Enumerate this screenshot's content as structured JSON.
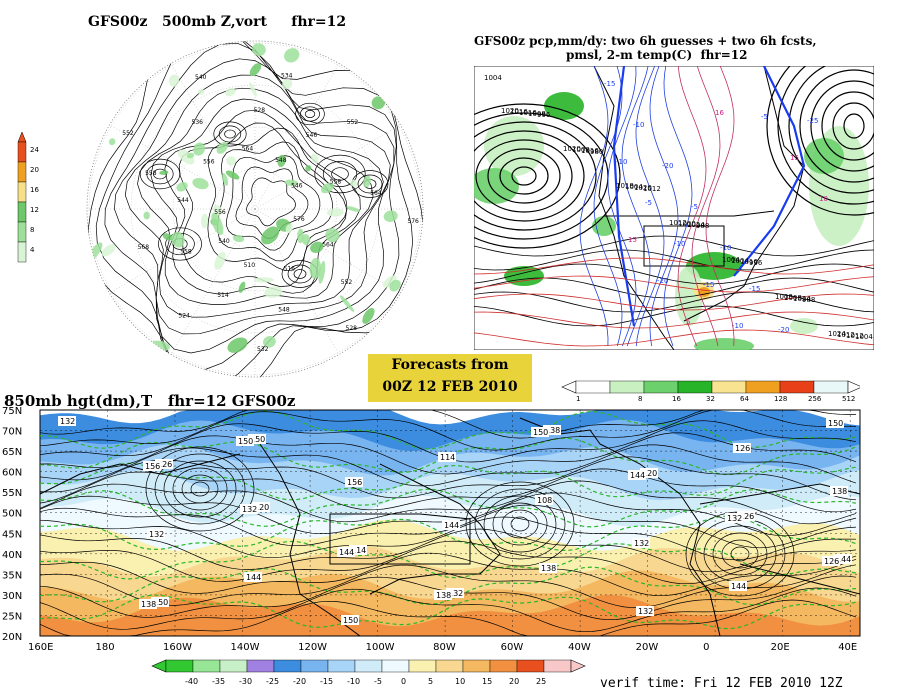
{
  "panel_500mb": {
    "title": "GFS00z   500mb Z,vort     fhr=12",
    "legend_ticks": [
      "24",
      "20",
      "16",
      "12",
      "8",
      "4"
    ],
    "legend_colors": [
      "#e8501e",
      "#f0a020",
      "#f8e08a",
      "#6cc868",
      "#9ee09a",
      "#d8f4d4"
    ],
    "contour_labels": [
      "576",
      "564",
      "552",
      "528",
      "516",
      "548",
      "532",
      "510",
      "514",
      "524",
      "540",
      "558",
      "568",
      "556",
      "544",
      "558",
      "552",
      "556",
      "536",
      "540",
      "564",
      "528",
      "534",
      "548",
      "546",
      "552",
      "546",
      "558",
      "564",
      "576"
    ]
  },
  "panel_pcp": {
    "title_line1": "GFS00z pcp,mm/dy: two 6h guesses + two 6h fcsts,",
    "title_line2": "pmsl, 2-m temp(C)  fhr=12",
    "pressure_labels": [
      "1004",
      "996",
      "980",
      "1012",
      "988",
      "996",
      "988",
      "1004",
      "1008",
      "1016",
      "1020",
      "1024",
      "1016",
      "1024",
      "1012",
      "1016",
      "1008",
      "1004",
      "1000",
      "1004",
      "1008",
      "1012",
      "1016",
      "1020",
      "1018",
      "1012",
      "1004",
      "1008",
      "1024",
      "1020"
    ],
    "temp_labels": [
      "-15",
      "-10",
      "-20",
      "-5",
      "-10",
      "-15",
      "-20",
      "-25",
      "-10",
      "-5",
      "-10",
      "-15",
      "-10",
      "-5",
      "15",
      "10",
      "15",
      "-20",
      "5",
      "16"
    ],
    "legend_ticks": [
      "1",
      "8",
      "16",
      "32",
      "64",
      "128",
      "256",
      "512"
    ],
    "legend_colors": [
      "#ffffff",
      "#c8f0c0",
      "#6cd06c",
      "#28b428",
      "#f8e490",
      "#f0a020",
      "#e84018",
      "#e8f8f8"
    ]
  },
  "forecasts_box": {
    "line1": "Forecasts from",
    "line2": "00Z 12 FEB 2010"
  },
  "panel_850mb": {
    "title": "850mb hgt(dm),T   fhr=12 GFS00z",
    "lat_labels": [
      "75N",
      "70N",
      "65N",
      "60N",
      "55N",
      "50N",
      "45N",
      "40N",
      "35N",
      "30N",
      "25N",
      "20N"
    ],
    "lon_labels": [
      "160E",
      "180",
      "160W",
      "140W",
      "120W",
      "100W",
      "80W",
      "60W",
      "40W",
      "20W",
      "0",
      "20E",
      "40E"
    ],
    "height_labels": [
      "132",
      "126",
      "120",
      "114",
      "132",
      "138",
      "120",
      "126",
      "144",
      "150",
      "150",
      "156",
      "144",
      "138",
      "132",
      "126",
      "138",
      "132",
      "144",
      "150",
      "114",
      "108",
      "132",
      "144",
      "150",
      "156",
      "132",
      "144",
      "138",
      "150",
      "144",
      "132",
      "126",
      "138",
      "150"
    ],
    "legend_ticks": [
      "-40",
      "-35",
      "-30",
      "-25",
      "-20",
      "-15",
      "-10",
      "-5",
      "0",
      "5",
      "10",
      "15",
      "20",
      "25"
    ],
    "legend_colors": [
      "#32c832",
      "#96e696",
      "#c8f0c8",
      "#a080e0",
      "#3c8ce0",
      "#78b4f0",
      "#a8d4f8",
      "#d0ecf8",
      "#eefaff",
      "#faf0b0",
      "#f8d890",
      "#f4b860",
      "#f09040",
      "#e85020",
      "#f8c8c8"
    ],
    "verif_time": "verif time: Fri 12 FEB 2010 12Z"
  }
}
